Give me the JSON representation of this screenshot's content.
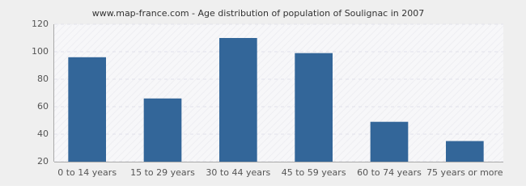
{
  "chart_data": {
    "type": "bar",
    "title": "www.map-france.com - Age distribution of population of Soulignac in 2007",
    "categories": [
      "0 to 14 years",
      "15 to 29 years",
      "30 to 44 years",
      "45 to 59 years",
      "60 to 74 years",
      "75 years or more"
    ],
    "values": [
      96,
      66,
      110,
      99,
      49,
      35
    ],
    "color": "#336699",
    "ylim": [
      20,
      120
    ],
    "yticks": [
      20,
      40,
      60,
      80,
      100,
      120
    ],
    "grid": true
  }
}
